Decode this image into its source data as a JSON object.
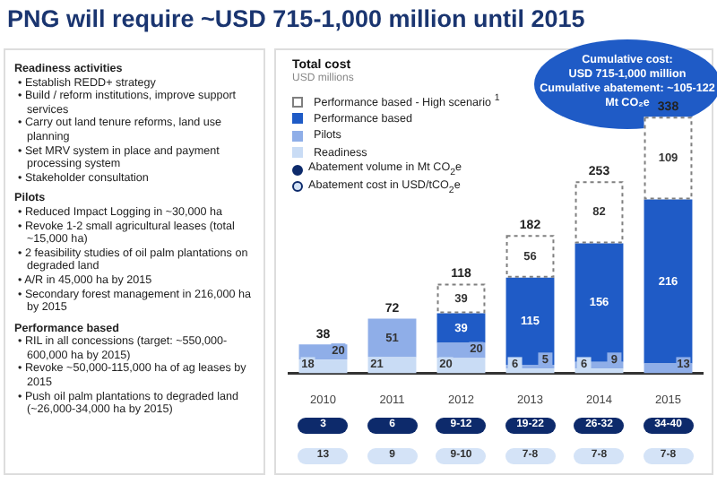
{
  "chart_data": {
    "type": "bar",
    "title": "PNG will require ~USD 715-1,000 million until 2015",
    "subtitle": "Total cost",
    "ylabel": "USD millions",
    "categories": [
      "2010",
      "2011",
      "2012",
      "2013",
      "2014",
      "2015"
    ],
    "stacked": true,
    "data_labels": true,
    "legend": "top left",
    "series": [
      {
        "name": "Readiness",
        "color": "#c9dcf5",
        "values": [
          18,
          21,
          20,
          6,
          6,
          null
        ]
      },
      {
        "name": "Pilots",
        "color": "#8faee8",
        "values": [
          20,
          51,
          20,
          5,
          9,
          13
        ]
      },
      {
        "name": "Performance based",
        "color": "#1f5bc6",
        "values": [
          null,
          null,
          39,
          115,
          156,
          216
        ]
      },
      {
        "name": "Performance based - High scenario $^{1}$",
        "color": "#7f7f7f",
        "line_style": "dashed",
        "values": [
          null,
          null,
          39,
          56,
          82,
          109
        ]
      }
    ],
    "totals": [
      "38",
      "72",
      "118",
      "182",
      "253",
      "338"
    ],
    "annotations": [
      "Cumulative cost:",
      "USD 715-1,000 million",
      "Cumulative abatement: ~105-122 Mt CO₂e",
      "Abatement volume in Mt CO$_{2}$e",
      "Abatement cost in USD/tCO$_{2}$e",
      "Readiness activities",
      "• Establish REDD+ strategy",
      "• Build / reform institutions, improve support services",
      "• Carry out land tenure reforms, land use planning",
      "• Set MRV system in place and payment processing system",
      "• Stakeholder consultation",
      "Pilots",
      "• Reduced Impact Logging in ~30,000 ha",
      "• Revoke 1-2 small agricultural leases (total ~15,000 ha)",
      "• 2 feasibility studies of oil palm plantations on degraded land",
      "• A/R in 45,000 ha by 2015",
      "• Secondary forest management in 216,000 ha by 2015",
      "Performance based",
      "• RIL in all concessions (target: ~550,000-600,000 ha by 2015)",
      "• Revoke ~50,000-115,000 ha of ag leases by 2015",
      "• Push oil palm plantations to degraded land (~26,000-34,000 ha by 2015)",
      "3",
      "6",
      "9-12",
      "19-22",
      "26-32",
      "34-40",
      "13",
      "9",
      "9-10",
      "7-8",
      "7-8",
      "7-8"
    ]
  }
}
